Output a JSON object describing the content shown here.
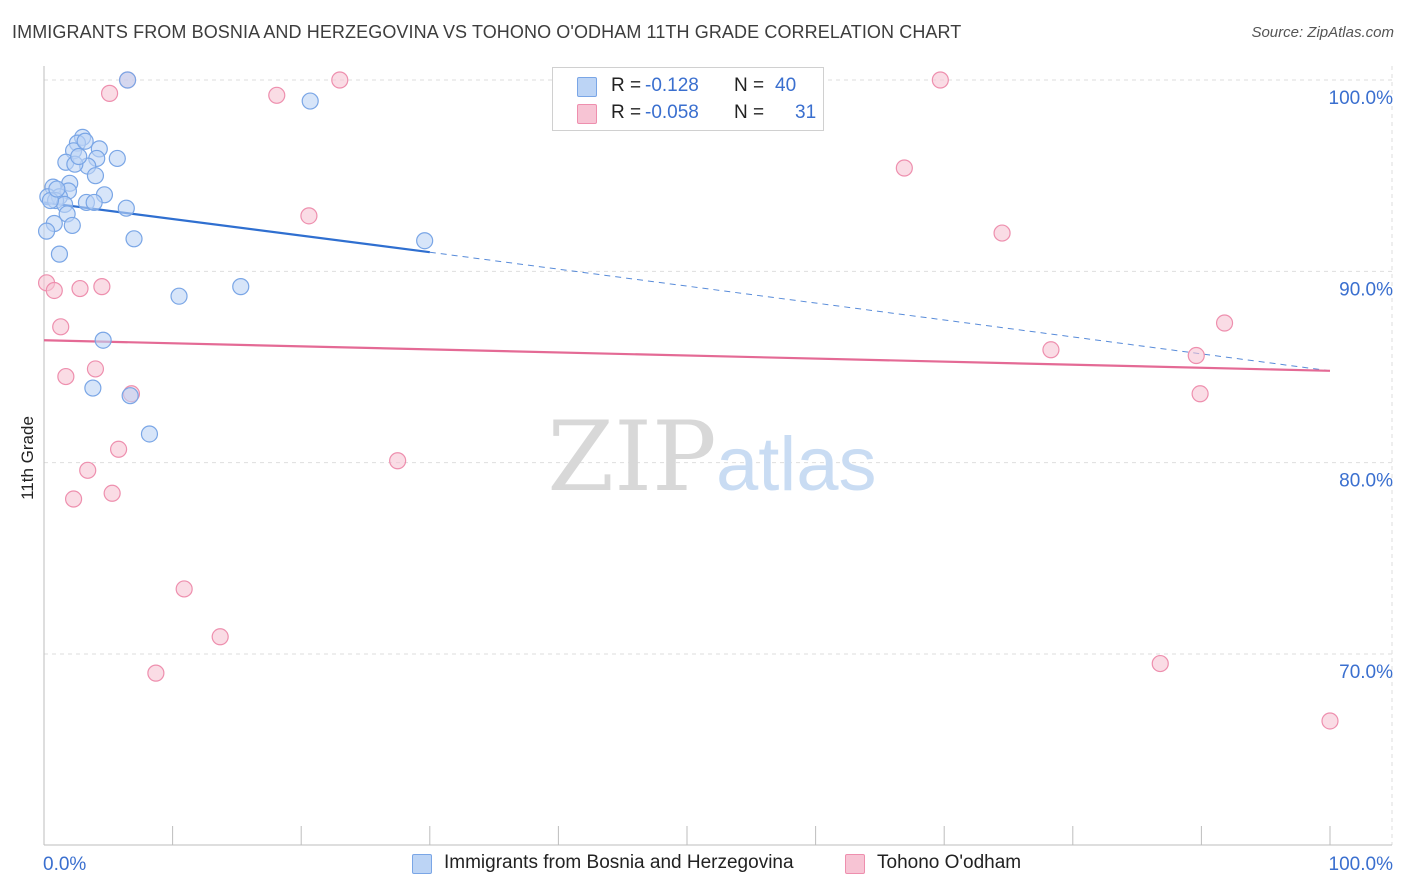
{
  "header": {
    "title": "IMMIGRANTS FROM BOSNIA AND HERZEGOVINA VS TOHONO O'ODHAM 11TH GRADE CORRELATION CHART",
    "source": "Source: ZipAtlas.com"
  },
  "watermark": {
    "zip": "ZIP",
    "atlas": "atlas"
  },
  "colors": {
    "blue_fill": "#bcd4f5",
    "blue_stroke": "#7aa6e6",
    "blue_line": "#2f6fd0",
    "pink_fill": "#f7c4d4",
    "pink_stroke": "#ee8fae",
    "pink_line": "#e46a95",
    "value_text": "#3a6fcf",
    "grid": "#dedede"
  },
  "legend": {
    "rows": [
      {
        "r_label": "R =",
        "r_value": "-0.128",
        "n_label": "N =",
        "n_value": "40",
        "color": "blue"
      },
      {
        "r_label": "R =",
        "r_value": "-0.058",
        "n_label": "N =",
        "n_value": "31",
        "color": "pink"
      }
    ]
  },
  "bottom_legend": [
    {
      "label": "Immigrants from Bosnia and Herzegovina",
      "color": "blue"
    },
    {
      "label": "Tohono O'odham",
      "color": "pink"
    }
  ],
  "chart_data": {
    "type": "scatter",
    "title": "IMMIGRANTS FROM BOSNIA AND HERZEGOVINA VS TOHONO O'ODHAM 11TH GRADE CORRELATION CHART",
    "xlabel": "",
    "ylabel": "11th Grade",
    "xlim": [
      0,
      100
    ],
    "ylim": [
      60,
      100
    ],
    "x_tick_labels": [
      "0.0%",
      "100.0%"
    ],
    "y_ticks": [
      70,
      80,
      90,
      100
    ],
    "y_tick_labels": [
      "70.0%",
      "80.0%",
      "90.0%",
      "100.0%"
    ],
    "grid": true,
    "legend_position": "top-center",
    "series": [
      {
        "name": "Immigrants from Bosnia and Herzegovina",
        "color": "blue",
        "points": [
          [
            6.5,
            100.0
          ],
          [
            20.7,
            98.9
          ],
          [
            3.0,
            97.0
          ],
          [
            2.6,
            96.7
          ],
          [
            4.3,
            96.4
          ],
          [
            2.3,
            96.3
          ],
          [
            5.7,
            95.9
          ],
          [
            4.1,
            95.9
          ],
          [
            1.7,
            95.7
          ],
          [
            3.4,
            95.5
          ],
          [
            2.4,
            95.6
          ],
          [
            4.0,
            95.0
          ],
          [
            2.0,
            94.6
          ],
          [
            0.7,
            94.4
          ],
          [
            1.9,
            94.2
          ],
          [
            0.3,
            93.9
          ],
          [
            4.7,
            94.0
          ],
          [
            1.2,
            93.9
          ],
          [
            0.9,
            93.7
          ],
          [
            3.3,
            93.6
          ],
          [
            3.9,
            93.6
          ],
          [
            1.6,
            93.5
          ],
          [
            6.4,
            93.3
          ],
          [
            1.8,
            93.0
          ],
          [
            0.8,
            92.5
          ],
          [
            2.2,
            92.4
          ],
          [
            0.2,
            92.1
          ],
          [
            7.0,
            91.7
          ],
          [
            29.6,
            91.6
          ],
          [
            1.2,
            90.9
          ],
          [
            15.3,
            89.2
          ],
          [
            10.5,
            88.7
          ],
          [
            4.6,
            86.4
          ],
          [
            3.8,
            83.9
          ],
          [
            6.7,
            83.5
          ],
          [
            8.2,
            81.5
          ],
          [
            0.5,
            93.7
          ],
          [
            1.0,
            94.3
          ],
          [
            3.2,
            96.8
          ],
          [
            2.7,
            96.0
          ]
        ],
        "trend": {
          "x": [
            0,
            30
          ],
          "y": [
            93.6,
            91.0
          ],
          "extended_to": [
            100,
            84.8
          ]
        }
      },
      {
        "name": "Tohono O'odham",
        "color": "pink",
        "points": [
          [
            6.5,
            100.0
          ],
          [
            23.0,
            100.0
          ],
          [
            47.5,
            100.0
          ],
          [
            69.7,
            100.0
          ],
          [
            5.1,
            99.3
          ],
          [
            18.1,
            99.2
          ],
          [
            66.9,
            95.4
          ],
          [
            20.6,
            92.9
          ],
          [
            74.5,
            92.0
          ],
          [
            0.2,
            89.4
          ],
          [
            0.8,
            89.0
          ],
          [
            2.8,
            89.1
          ],
          [
            4.5,
            89.2
          ],
          [
            91.8,
            87.3
          ],
          [
            1.3,
            87.1
          ],
          [
            78.3,
            85.9
          ],
          [
            89.6,
            85.6
          ],
          [
            1.7,
            84.5
          ],
          [
            4.0,
            84.9
          ],
          [
            6.8,
            83.6
          ],
          [
            89.9,
            83.6
          ],
          [
            5.8,
            80.7
          ],
          [
            27.5,
            80.1
          ],
          [
            3.4,
            79.6
          ],
          [
            2.3,
            78.1
          ],
          [
            5.3,
            78.4
          ],
          [
            10.9,
            73.4
          ],
          [
            13.7,
            70.9
          ],
          [
            86.8,
            69.5
          ],
          [
            8.7,
            69.0
          ],
          [
            100.0,
            66.5
          ]
        ],
        "trend": {
          "x": [
            0,
            100
          ],
          "y": [
            86.4,
            84.8
          ]
        }
      }
    ]
  }
}
